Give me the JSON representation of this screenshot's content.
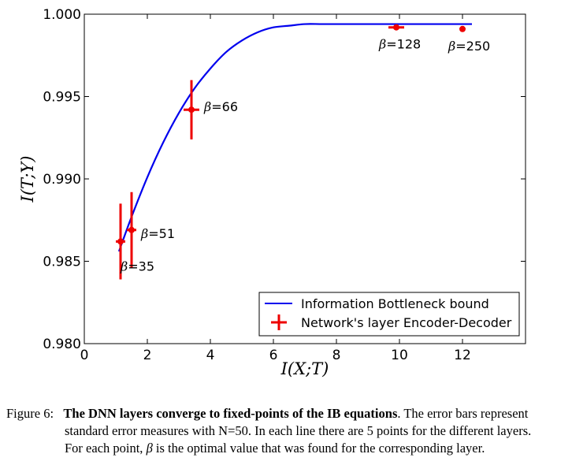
{
  "chart_data": {
    "type": "line",
    "xlabel": "I(X;T)",
    "ylabel": "I(T;Y)",
    "xlim": [
      0,
      14
    ],
    "ylim": [
      0.98,
      1.0
    ],
    "x_ticks": [
      "0",
      "2",
      "4",
      "6",
      "8",
      "10",
      "12"
    ],
    "y_ticks": [
      "0.980",
      "0.985",
      "0.990",
      "0.995",
      "1.000"
    ],
    "grid": false,
    "legend_position": "lower-right",
    "series": [
      {
        "name": "Information Bottleneck bound",
        "kind": "line",
        "color": "#0000ee",
        "x": [
          1.1,
          1.5,
          2.0,
          2.5,
          3.0,
          3.5,
          4.0,
          4.5,
          5.0,
          5.5,
          6.0,
          6.5,
          7.0,
          7.5,
          8.0,
          9.0,
          10.0,
          11.0,
          12.3
        ],
        "y": [
          0.9856,
          0.9877,
          0.9901,
          0.9922,
          0.994,
          0.9955,
          0.9967,
          0.9977,
          0.9984,
          0.9989,
          0.9992,
          0.9993,
          0.9994,
          0.9994,
          0.9994,
          0.9994,
          0.9994,
          0.9994,
          0.9994
        ]
      },
      {
        "name": "Network's layer Encoder-Decoder",
        "kind": "errorbar",
        "color": "#ee0000",
        "points": [
          {
            "beta_label": "35",
            "x": 1.15,
            "y": 0.9862,
            "xerr": 0.15,
            "yerr": 0.0023
          },
          {
            "beta_label": "51",
            "x": 1.5,
            "y": 0.9869,
            "xerr": 0.15,
            "yerr": 0.0023
          },
          {
            "beta_label": "66",
            "x": 3.4,
            "y": 0.9942,
            "xerr": 0.25,
            "yerr": 0.0018
          },
          {
            "beta_label": "128",
            "x": 9.9,
            "y": 0.9992,
            "xerr": 0.25,
            "yerr": 0.0001
          },
          {
            "beta_label": "250",
            "x": 12.0,
            "y": 0.9991,
            "xerr": 0.0,
            "yerr": 0.0
          }
        ]
      }
    ],
    "annotation_prefix": "β=",
    "title": ""
  },
  "caption": {
    "label": "Figure 6:",
    "bold": "The DNN layers converge to fixed-points of the IB equations",
    "line1_rest": ". The error bars represent",
    "line2": "standard error measures with N=50. In each line there are 5 points for the different layers.",
    "line3_pre": "For each point,",
    "line3_beta": "β",
    "line3_post": "is the optimal value that was found for the corresponding layer."
  }
}
